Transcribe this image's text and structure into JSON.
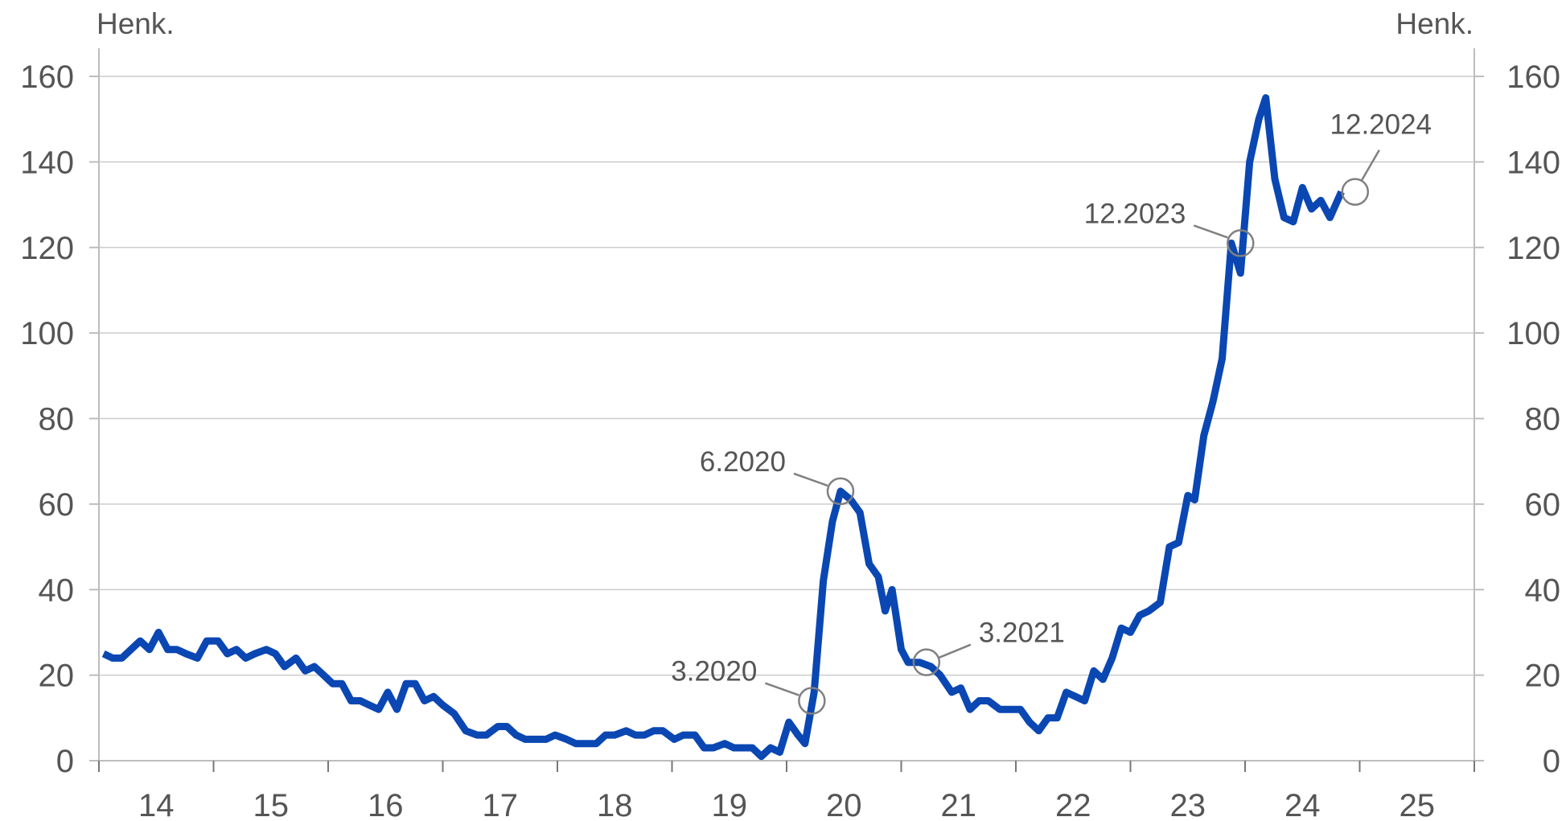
{
  "chart_data": {
    "type": "line",
    "title": "",
    "ylabel_left": "Henk.",
    "ylabel_right": "Henk.",
    "ylim": [
      0,
      160
    ],
    "yticks": [
      0,
      20,
      40,
      60,
      80,
      100,
      120,
      140,
      160
    ],
    "xlim": [
      2014,
      2026
    ],
    "xtick_labels": [
      "14",
      "15",
      "16",
      "17",
      "18",
      "19",
      "20",
      "21",
      "22",
      "23",
      "24",
      "25"
    ],
    "grid": true,
    "legend": "none",
    "line_color": "#0a47b3",
    "series": [
      {
        "points": [
          [
            2014.04,
            25
          ],
          [
            2014.12,
            24
          ],
          [
            2014.2,
            24
          ],
          [
            2014.28,
            26
          ],
          [
            2014.36,
            28
          ],
          [
            2014.44,
            26
          ],
          [
            2014.52,
            30
          ],
          [
            2014.6,
            26
          ],
          [
            2014.68,
            26
          ],
          [
            2014.76,
            25
          ],
          [
            2014.86,
            24
          ],
          [
            2014.94,
            28
          ],
          [
            2015.04,
            28
          ],
          [
            2015.12,
            25
          ],
          [
            2015.2,
            26
          ],
          [
            2015.28,
            24
          ],
          [
            2015.36,
            25
          ],
          [
            2015.46,
            26
          ],
          [
            2015.54,
            25
          ],
          [
            2015.62,
            22
          ],
          [
            2015.72,
            24
          ],
          [
            2015.8,
            21
          ],
          [
            2015.88,
            22
          ],
          [
            2015.96,
            20
          ],
          [
            2016.04,
            18
          ],
          [
            2016.12,
            18
          ],
          [
            2016.2,
            14
          ],
          [
            2016.28,
            14
          ],
          [
            2016.36,
            13
          ],
          [
            2016.44,
            12
          ],
          [
            2016.52,
            16
          ],
          [
            2016.6,
            12
          ],
          [
            2016.68,
            18
          ],
          [
            2016.76,
            18
          ],
          [
            2016.84,
            14
          ],
          [
            2016.92,
            15
          ],
          [
            2017,
            13
          ],
          [
            2017.1,
            11
          ],
          [
            2017.2,
            7
          ],
          [
            2017.3,
            6
          ],
          [
            2017.38,
            6
          ],
          [
            2017.48,
            8
          ],
          [
            2017.56,
            8
          ],
          [
            2017.64,
            6
          ],
          [
            2017.72,
            5
          ],
          [
            2017.82,
            5
          ],
          [
            2017.9,
            5
          ],
          [
            2017.98,
            6
          ],
          [
            2018.08,
            5
          ],
          [
            2018.16,
            4
          ],
          [
            2018.26,
            4
          ],
          [
            2018.34,
            4
          ],
          [
            2018.42,
            6
          ],
          [
            2018.5,
            6
          ],
          [
            2018.6,
            7
          ],
          [
            2018.68,
            6
          ],
          [
            2018.76,
            6
          ],
          [
            2018.84,
            7
          ],
          [
            2018.92,
            7
          ],
          [
            2019.02,
            5
          ],
          [
            2019.1,
            6
          ],
          [
            2019.2,
            6
          ],
          [
            2019.28,
            3
          ],
          [
            2019.36,
            3
          ],
          [
            2019.46,
            4
          ],
          [
            2019.54,
            3
          ],
          [
            2019.62,
            3
          ],
          [
            2019.7,
            3
          ],
          [
            2019.78,
            1
          ],
          [
            2019.86,
            3
          ],
          [
            2019.94,
            2
          ],
          [
            2020.02,
            9
          ],
          [
            2020.1,
            6
          ],
          [
            2020.16,
            4
          ],
          [
            2020.24,
            16
          ],
          [
            2020.32,
            42
          ],
          [
            2020.4,
            56
          ],
          [
            2020.47,
            63
          ],
          [
            2020.56,
            61
          ],
          [
            2020.64,
            58
          ],
          [
            2020.72,
            46
          ],
          [
            2020.8,
            43
          ],
          [
            2020.86,
            35
          ],
          [
            2020.92,
            40
          ],
          [
            2021,
            26
          ],
          [
            2021.06,
            23
          ],
          [
            2021.16,
            23
          ],
          [
            2021.26,
            22
          ],
          [
            2021.34,
            20
          ],
          [
            2021.44,
            16
          ],
          [
            2021.52,
            17
          ],
          [
            2021.6,
            12
          ],
          [
            2021.68,
            14
          ],
          [
            2021.76,
            14
          ],
          [
            2021.86,
            12
          ],
          [
            2021.94,
            12
          ],
          [
            2022.04,
            12
          ],
          [
            2022.12,
            9
          ],
          [
            2022.2,
            7
          ],
          [
            2022.28,
            10
          ],
          [
            2022.36,
            10
          ],
          [
            2022.44,
            16
          ],
          [
            2022.52,
            15
          ],
          [
            2022.6,
            14
          ],
          [
            2022.68,
            21
          ],
          [
            2022.76,
            19
          ],
          [
            2022.84,
            24
          ],
          [
            2022.92,
            31
          ],
          [
            2023,
            30
          ],
          [
            2023.08,
            34
          ],
          [
            2023.16,
            35
          ],
          [
            2023.26,
            37
          ],
          [
            2023.34,
            50
          ],
          [
            2023.42,
            51
          ],
          [
            2023.5,
            62
          ],
          [
            2023.56,
            61
          ],
          [
            2023.64,
            76
          ],
          [
            2023.72,
            84
          ],
          [
            2023.8,
            94
          ],
          [
            2023.88,
            121
          ],
          [
            2023.96,
            114
          ],
          [
            2024.04,
            140
          ],
          [
            2024.12,
            150
          ],
          [
            2024.18,
            155
          ],
          [
            2024.26,
            136
          ],
          [
            2024.34,
            127
          ],
          [
            2024.42,
            126
          ],
          [
            2024.5,
            134
          ],
          [
            2024.58,
            129
          ],
          [
            2024.66,
            131
          ],
          [
            2024.74,
            127
          ],
          [
            2024.84,
            133
          ]
        ]
      }
    ],
    "annotations": [
      {
        "label": "3.2020",
        "x": 2020.22,
        "y": 14,
        "label_side": "left"
      },
      {
        "label": "6.2020",
        "x": 2020.47,
        "y": 63,
        "label_side": "left"
      },
      {
        "label": "3.2021",
        "x": 2021.22,
        "y": 23,
        "label_side": "right"
      },
      {
        "label": "12.2023",
        "x": 2023.96,
        "y": 121,
        "label_side": "left"
      },
      {
        "label": "12.2024",
        "x": 2024.96,
        "y": 133,
        "label_side": "up"
      }
    ]
  }
}
